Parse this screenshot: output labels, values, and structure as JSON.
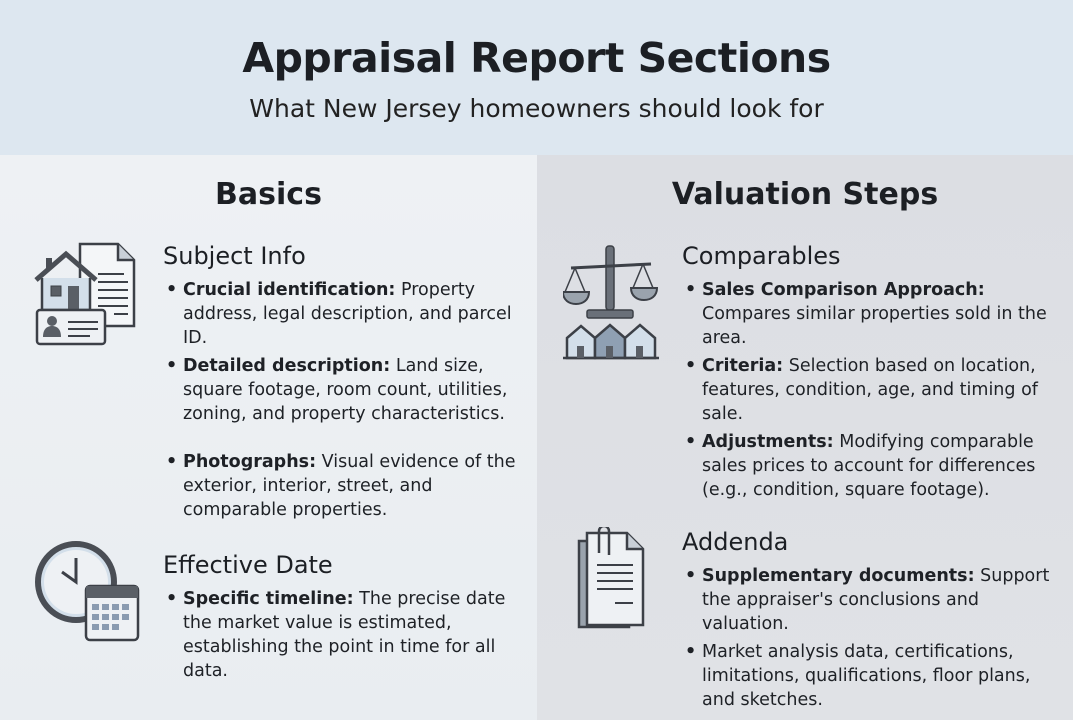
{
  "header": {
    "title": "Appraisal Report Sections",
    "subtitle": "What New Jersey homeowners should look for"
  },
  "left": {
    "heading": "Basics",
    "sections": [
      {
        "title": "Subject Info",
        "icon": "house-document-id-icon",
        "bullets": [
          {
            "label": "Crucial identification:",
            "text": " Property address, legal description, and parcel ID."
          },
          {
            "label": "Detailed description:",
            "text": " Land size, square footage, room count, utilities, zoning, and property characteristics."
          },
          {
            "label": "Photographs:",
            "text": " Visual evidence of the exterior, interior, street, and comparable properties."
          }
        ]
      },
      {
        "title": "Effective Date",
        "icon": "clock-calendar-icon",
        "bullets": [
          {
            "label": "Specific timeline:",
            "text": " The precise date the market value is estimated, establishing the point in time for all data."
          }
        ]
      }
    ]
  },
  "right": {
    "heading": "Valuation Steps",
    "sections": [
      {
        "title": "Comparables",
        "icon": "scale-houses-icon",
        "bullets": [
          {
            "label": "Sales Comparison Approach:",
            "text": " Compares similar properties sold in the area."
          },
          {
            "label": "Criteria:",
            "text": " Selection based on location, features, condition, age, and timing of sale."
          },
          {
            "label": "Adjustments:",
            "text": " Modifying comparable sales prices to account for differences (e.g., condition, square footage)."
          }
        ]
      },
      {
        "title": "Addenda",
        "icon": "clipped-documents-icon",
        "bullets": [
          {
            "label": "Supplementary documents:",
            "text": " Support the appraiser's conclusions and valuation."
          },
          {
            "label": "",
            "text": "Market analysis data, certifications, limitations, qualifications, floor plans, and sketches."
          }
        ]
      }
    ]
  },
  "colors": {
    "header_bg": "#dde7f0",
    "left_bg": "#eef1f4",
    "right_bg": "#dcdee3",
    "icon_stroke": "#3c4047",
    "icon_fill": "#d3dfea"
  }
}
